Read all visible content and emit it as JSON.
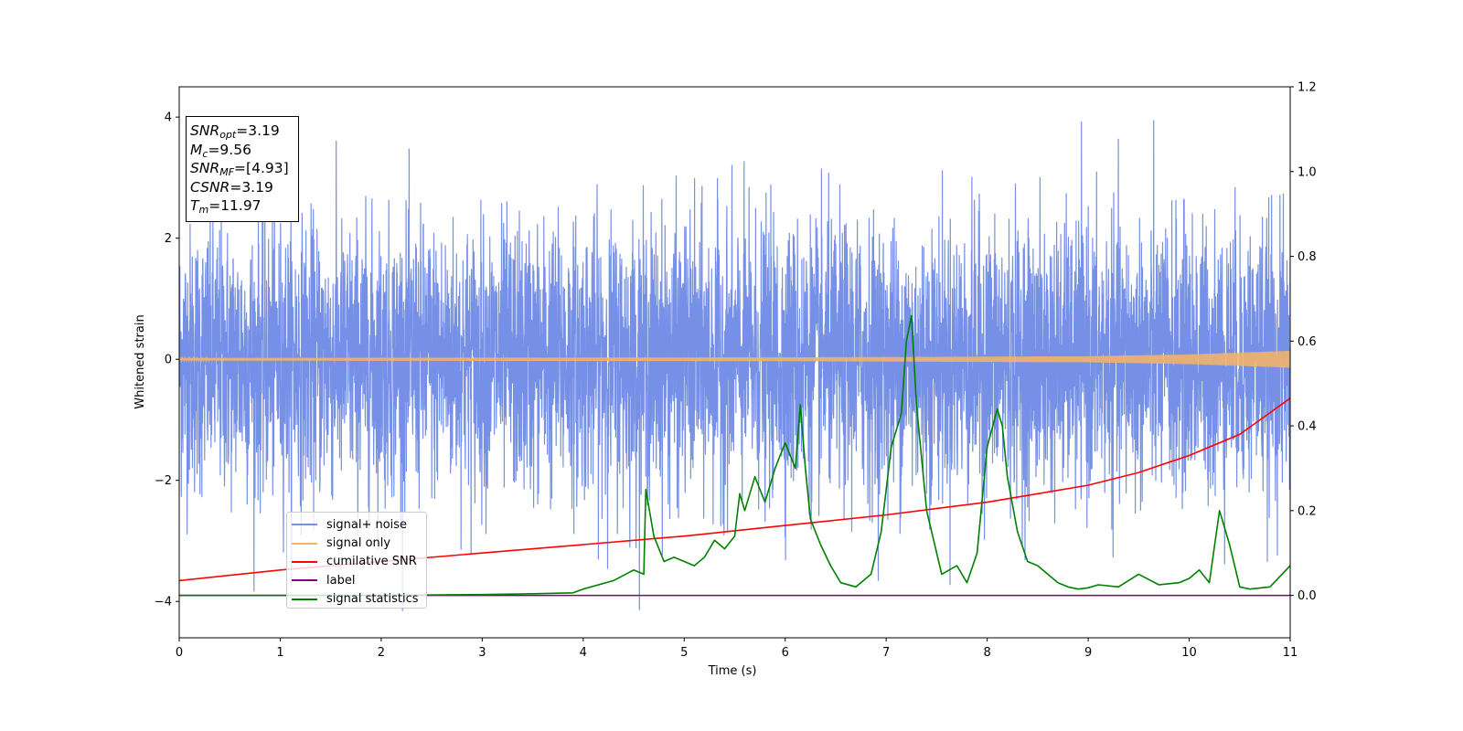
{
  "chart_data": {
    "type": "line",
    "title": "",
    "xlabel": "Time (s)",
    "ylabel": "Whitened strain",
    "xlim": [
      0,
      11
    ],
    "ylim": [
      -4.6,
      4.5
    ],
    "y2lim": [
      -0.1,
      1.2
    ],
    "xticks": [
      "0",
      "1",
      "2",
      "3",
      "4",
      "5",
      "6",
      "7",
      "8",
      "9",
      "10",
      "11"
    ],
    "yticks": [
      "−4",
      "−2",
      "0",
      "2",
      "4"
    ],
    "y2ticks": [
      "0.0",
      "0.2",
      "0.4",
      "0.6",
      "0.8",
      "1.0",
      "1.2"
    ],
    "legend_position": "lower-left",
    "colors": {
      "signal_noise": "#7590e6",
      "signal_only": "#f2b46b",
      "cumulative_snr": "#ff0000",
      "label": "#800080",
      "signal_statistics": "#008000"
    },
    "series": [
      {
        "name": "signal+ noise",
        "axis": "left",
        "envelope": "noise",
        "std": 1.1,
        "peak_max": 4.1,
        "peak_min": -4.15
      },
      {
        "name": "signal only",
        "axis": "left",
        "x": [
          0,
          6,
          9,
          10,
          10.5,
          11
        ],
        "amplitude": [
          0.02,
          0.03,
          0.05,
          0.08,
          0.11,
          0.14
        ]
      },
      {
        "name": "cumilative SNR",
        "axis": "right",
        "x": [
          0,
          1,
          2,
          3,
          4,
          5,
          6,
          7,
          8,
          9,
          9.5,
          10,
          10.5,
          11
        ],
        "y": [
          0.035,
          0.06,
          0.08,
          0.1,
          0.12,
          0.14,
          0.165,
          0.19,
          0.22,
          0.26,
          0.29,
          0.33,
          0.38,
          0.465
        ]
      },
      {
        "name": "label",
        "axis": "right",
        "x": [
          0,
          11
        ],
        "y": [
          0,
          0
        ]
      },
      {
        "name": "signal statistics",
        "axis": "right",
        "x": [
          0,
          0.5,
          1,
          2,
          3,
          3.5,
          3.9,
          4.0,
          4.3,
          4.5,
          4.6,
          4.62,
          4.7,
          4.8,
          4.9,
          5.0,
          5.1,
          5.2,
          5.3,
          5.4,
          5.5,
          5.55,
          5.6,
          5.7,
          5.8,
          5.9,
          6.0,
          6.1,
          6.15,
          6.2,
          6.25,
          6.35,
          6.45,
          6.55,
          6.7,
          6.85,
          6.95,
          7.05,
          7.15,
          7.2,
          7.25,
          7.3,
          7.4,
          7.55,
          7.7,
          7.8,
          7.9,
          8.0,
          8.1,
          8.15,
          8.2,
          8.3,
          8.4,
          8.5,
          8.6,
          8.7,
          8.8,
          8.9,
          9.0,
          9.1,
          9.3,
          9.5,
          9.7,
          9.9,
          10.0,
          10.1,
          10.2,
          10.3,
          10.4,
          10.5,
          10.6,
          10.8,
          11.0
        ],
        "y": [
          0.0,
          0.0,
          0.0,
          0.0,
          0.002,
          0.004,
          0.006,
          0.015,
          0.035,
          0.06,
          0.05,
          0.25,
          0.14,
          0.08,
          0.09,
          0.08,
          0.07,
          0.09,
          0.13,
          0.11,
          0.14,
          0.24,
          0.2,
          0.28,
          0.22,
          0.3,
          0.36,
          0.3,
          0.45,
          0.3,
          0.18,
          0.12,
          0.07,
          0.03,
          0.02,
          0.05,
          0.15,
          0.35,
          0.43,
          0.6,
          0.66,
          0.45,
          0.2,
          0.05,
          0.07,
          0.03,
          0.1,
          0.35,
          0.44,
          0.4,
          0.28,
          0.15,
          0.08,
          0.07,
          0.05,
          0.03,
          0.02,
          0.015,
          0.018,
          0.025,
          0.02,
          0.05,
          0.025,
          0.03,
          0.04,
          0.06,
          0.03,
          0.2,
          0.12,
          0.02,
          0.015,
          0.02,
          0.07
        ]
      }
    ],
    "info_box": {
      "snr_opt": "=3.19",
      "mc": "=9.56",
      "snr_mf": "=[4.93]",
      "csnr": "=3.19",
      "tm": "=11.97"
    }
  }
}
